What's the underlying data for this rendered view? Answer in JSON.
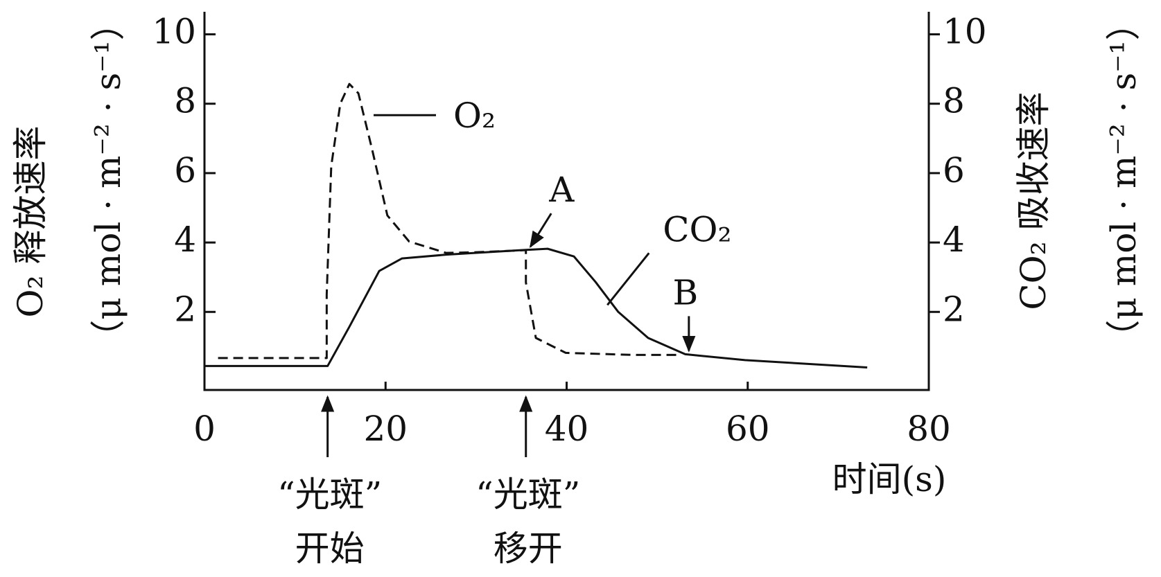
{
  "chart_data": {
    "type": "line",
    "x_label": "时间(s)",
    "y_label": "O₂ 释放速率",
    "y_unit": "（μ mol · m⁻² · s⁻¹）",
    "y2_label": "CO₂ 吸收速率",
    "y2_unit": "（μ mol · m⁻² · s⁻¹）",
    "xlim": [
      0,
      80
    ],
    "xticks": [
      0,
      20,
      40,
      60,
      80
    ],
    "ylim": [
      -0.25,
      10.65
    ],
    "yticks": [
      2,
      4,
      6,
      8,
      10
    ],
    "y2lim": [
      -0.25,
      10.65
    ],
    "y2ticks": [
      2,
      4,
      6,
      8,
      10
    ],
    "series": [
      {
        "name": "O₂",
        "color": "#111111",
        "dash": true,
        "x": [
          1.5,
          13.5,
          13.5,
          14,
          15,
          16,
          17,
          18.5,
          20.2,
          22.6,
          26.7,
          30,
          35.5,
          35.5,
          36.6,
          39.9,
          47.3,
          52.7
        ],
        "values": [
          0.67,
          0.67,
          2.5,
          6.2,
          8.0,
          8.57,
          8.3,
          6.7,
          4.78,
          4.03,
          3.7,
          3.72,
          3.78,
          2.85,
          1.25,
          0.82,
          0.76,
          0.76
        ]
      },
      {
        "name": "CO₂",
        "color": "#111111",
        "dash": false,
        "axis": "y2",
        "x": [
          0,
          13.6,
          16,
          19.3,
          21.8,
          26.7,
          35,
          37.9,
          40.8,
          43.2,
          45.7,
          49,
          53.1,
          59.7,
          73.2
        ],
        "values": [
          0.44,
          0.44,
          1.57,
          3.18,
          3.54,
          3.65,
          3.78,
          3.82,
          3.6,
          2.86,
          2.0,
          1.25,
          0.78,
          0.61,
          0.4
        ]
      }
    ],
    "annotations": [
      {
        "text": "A",
        "x": 36,
        "y": 3.8
      },
      {
        "text": "B",
        "x": 53.5,
        "y": 0.8
      }
    ],
    "events": [
      {
        "lines": [
          "“光斑”",
          "开始"
        ],
        "x": 13.6
      },
      {
        "lines": [
          "“光斑”",
          "移开"
        ],
        "x": 35.5
      }
    ]
  }
}
